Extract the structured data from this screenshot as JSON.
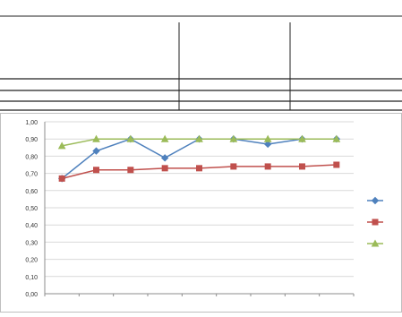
{
  "table": {
    "title_left": "",
    "subtitle_left": "",
    "group_title": "",
    "groups": [
      "",
      "",
      ""
    ],
    "group_subs": [
      "",
      "",
      ""
    ],
    "header_row": [
      "",
      "",
      "",
      "",
      "",
      "",
      "",
      "",
      "",
      ""
    ],
    "rows": [
      {
        "label": "",
        "cells": [
          "",
          "",
          "",
          "",
          "",
          "",
          "",
          "",
          ""
        ]
      },
      {
        "label": "",
        "cells": [
          "",
          "",
          "",
          "",
          "",
          "",
          "",
          "",
          ""
        ]
      },
      {
        "label": "",
        "cells": [
          "",
          "",
          "",
          "",
          "",
          "",
          "",
          "",
          ""
        ]
      }
    ]
  },
  "chart_data": {
    "type": "line",
    "title": "",
    "xlabel": "",
    "ylabel": "",
    "x": [
      "",
      "",
      "",
      "",
      "",
      "",
      "",
      "",
      ""
    ],
    "ylim": [
      0.0,
      1.0
    ],
    "yticks": [
      "0,00",
      "0,10",
      "0,20",
      "0,30",
      "0,40",
      "0,50",
      "0,60",
      "0,70",
      "0,80",
      "0,90",
      "1,00"
    ],
    "grid": true,
    "legend_position": "right",
    "series": [
      {
        "name": "",
        "color": "#4f81bd",
        "marker": "diamond",
        "values": [
          0.67,
          0.83,
          0.9,
          0.79,
          0.9,
          0.9,
          0.87,
          0.9,
          0.9
        ]
      },
      {
        "name": "",
        "color": "#c0504d",
        "marker": "square",
        "values": [
          0.67,
          0.72,
          0.72,
          0.73,
          0.73,
          0.74,
          0.74,
          0.74,
          0.75
        ]
      },
      {
        "name": "",
        "color": "#9bbb59",
        "marker": "triangle",
        "values": [
          0.86,
          0.9,
          0.9,
          0.9,
          0.9,
          0.9,
          0.9,
          0.9,
          0.9
        ]
      }
    ]
  }
}
